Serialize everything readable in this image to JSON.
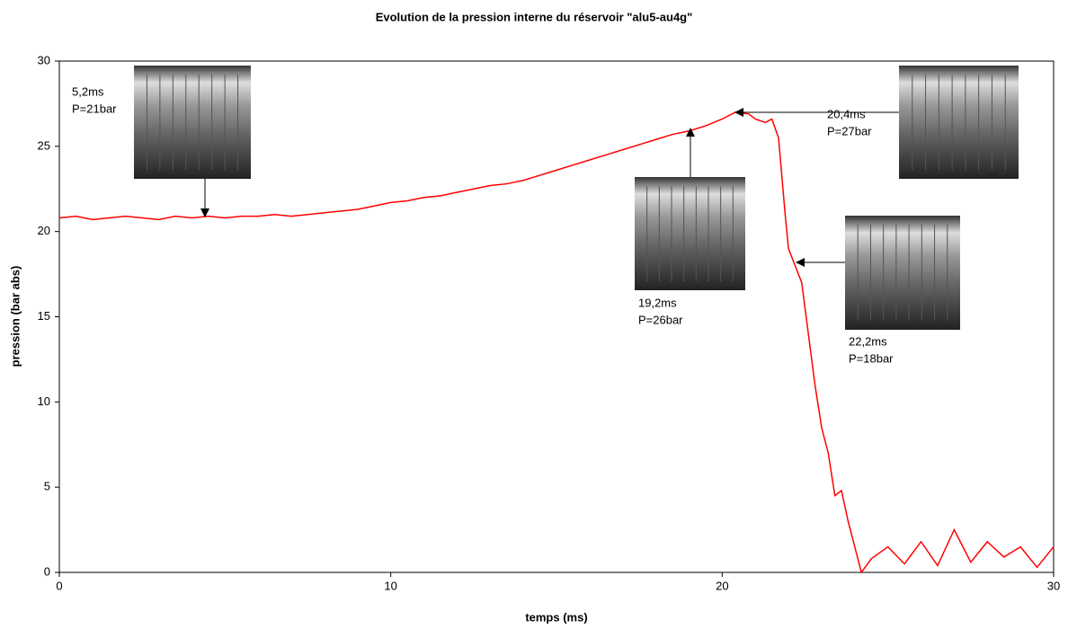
{
  "chart_data": {
    "type": "line",
    "title": "Evolution de la pression interne du  réservoir \"alu5-au4g\"",
    "x_label": "temps (ms)",
    "y_label": "pression (bar abs)",
    "xlim": [
      0,
      30
    ],
    "ylim": [
      0,
      30
    ],
    "xticks": [
      0,
      10,
      20,
      30
    ],
    "yticks": [
      0,
      5,
      10,
      15,
      20,
      25,
      30
    ],
    "grid": false,
    "series": [
      {
        "color": "#ff0000",
        "x": [
          0,
          0.5,
          1,
          1.5,
          2,
          2.5,
          3,
          3.5,
          4,
          4.5,
          5,
          5.5,
          6,
          6.5,
          7,
          7.5,
          8,
          8.5,
          9,
          9.5,
          10,
          10.5,
          11,
          11.5,
          12,
          12.5,
          13,
          13.5,
          14,
          14.5,
          15,
          15.5,
          16,
          16.5,
          17,
          17.5,
          18,
          18.5,
          19,
          19.5,
          20,
          20.4,
          20.8,
          21,
          21.3,
          21.5,
          21.7,
          21.9,
          22,
          22.2,
          22.4,
          22.6,
          22.8,
          23,
          23.2,
          23.4,
          23.6,
          23.8,
          24,
          24.2,
          24.5,
          25,
          25.5,
          26,
          26.5,
          27,
          27.5,
          28,
          28.5,
          29,
          29.5,
          30
        ],
        "values": [
          20.8,
          20.9,
          20.7,
          20.8,
          20.9,
          20.8,
          20.7,
          20.9,
          20.8,
          20.9,
          20.8,
          20.9,
          20.9,
          21,
          20.9,
          21,
          21.1,
          21.2,
          21.3,
          21.5,
          21.7,
          21.8,
          22,
          22.1,
          22.3,
          22.5,
          22.7,
          22.8,
          23,
          23.3,
          23.6,
          23.9,
          24.2,
          24.5,
          24.8,
          25.1,
          25.4,
          25.7,
          25.9,
          26.2,
          26.6,
          27,
          26.9,
          26.6,
          26.4,
          26.6,
          25.5,
          21,
          19,
          18,
          17,
          14,
          11,
          8.5,
          7,
          4.5,
          4.8,
          3,
          1.5,
          0,
          0.8,
          1.5,
          0.5,
          1.8,
          0.4,
          2.5,
          0.6,
          1.8,
          0.9,
          1.5,
          0.3,
          1.5
        ]
      }
    ],
    "annotations": [
      {
        "time": "5,2ms",
        "pressure": "P=21bar"
      },
      {
        "time": "19,2ms",
        "pressure": "P=26bar"
      },
      {
        "time": "20,4ms",
        "pressure": "P=27bar"
      },
      {
        "time": "22,2ms",
        "pressure": "P=18bar"
      }
    ]
  }
}
